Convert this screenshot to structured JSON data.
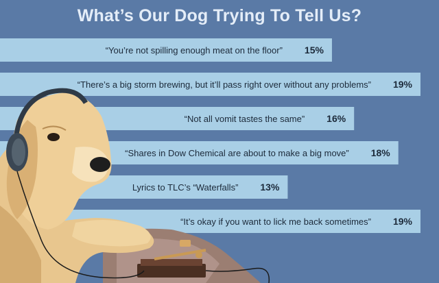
{
  "title": "What’s Our Dog Trying To Tell Us?",
  "colors": {
    "background": "#5a7aa6",
    "bar": "#a9cfe6",
    "title": "#e4edf8",
    "text": "#1c2a3a"
  },
  "chart_data": {
    "type": "bar",
    "orientation": "horizontal",
    "title": "What’s Our Dog Trying To Tell Us?",
    "categories": [
      "“You’re not spilling enough meat on the floor”",
      "“There’s a big storm brewing, but it’ll pass right over without any problems”",
      "“Not all vomit tastes the same”",
      "“Shares in Dow Chemical are about to make a big move”",
      "Lyrics to TLC’s “Waterfalls”",
      "“It’s okay if you want to lick me back sometimes”"
    ],
    "values": [
      15,
      19,
      16,
      18,
      13,
      19
    ],
    "value_labels": [
      "15%",
      "19%",
      "16%",
      "18%",
      "13%",
      "19%"
    ],
    "unit": "%",
    "legend": "none",
    "grid": false
  }
}
